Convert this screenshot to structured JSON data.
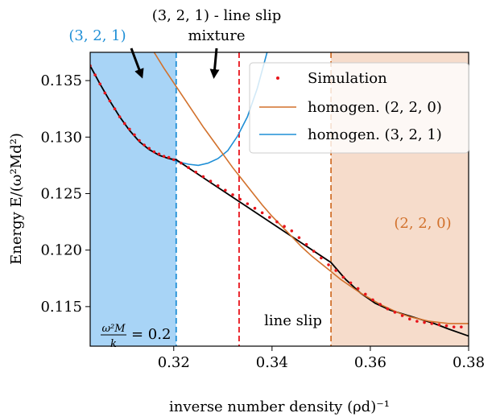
{
  "chart_data": {
    "type": "line",
    "xlabel": "inverse number density (ρd)⁻¹",
    "ylabel": "Energy E/(ω²Md²)",
    "xlim": [
      0.303,
      0.38
    ],
    "ylim": [
      0.1115,
      0.1375
    ],
    "x_ticks": [
      0.32,
      0.34,
      0.36,
      0.38
    ],
    "x_tick_labels": [
      "0.32",
      "0.34",
      "0.36",
      "0.38"
    ],
    "y_ticks": [
      0.115,
      0.12,
      0.125,
      0.13,
      0.135
    ],
    "y_tick_labels": [
      "0.115",
      "0.120",
      "0.125",
      "0.130",
      "0.135"
    ],
    "legend_position": "top-right",
    "colors": {
      "blue": "#1f8fd6",
      "orange": "#d2712c",
      "red": "#e8141b",
      "black": "#000000",
      "blue_region": "#a8d4f6",
      "orange_region": "#f6dccb"
    },
    "regions": [
      {
        "label": "(3, 2, 1)",
        "x_start": 0.303,
        "x_end": 0.3205,
        "color": "#a8d4f6"
      },
      {
        "label": "(2, 2, 0)",
        "x_start": 0.352,
        "x_end": 0.38,
        "color": "#f6dccb"
      }
    ],
    "vertical_lines": [
      {
        "x": 0.3205,
        "color": "#1f8fd6",
        "style": "dashed"
      },
      {
        "x": 0.3333,
        "color": "#e8141b",
        "style": "dashed"
      },
      {
        "x": 0.352,
        "color": "#d2712c",
        "style": "dashed"
      }
    ],
    "series": [
      {
        "name": "Simulation",
        "style": "dots",
        "color": "#e8141b",
        "x": [
          0.303,
          0.304,
          0.305,
          0.306,
          0.307,
          0.308,
          0.309,
          0.31,
          0.311,
          0.312,
          0.313,
          0.314,
          0.315,
          0.316,
          0.317,
          0.318,
          0.319,
          0.32,
          0.3215,
          0.323,
          0.3245,
          0.326,
          0.3275,
          0.329,
          0.3305,
          0.332,
          0.3335,
          0.335,
          0.3365,
          0.338,
          0.3395,
          0.341,
          0.3425,
          0.344,
          0.3455,
          0.347,
          0.3485,
          0.35,
          0.3515,
          0.353,
          0.3545,
          0.356,
          0.3575,
          0.359,
          0.3605,
          0.362,
          0.3635,
          0.365,
          0.3665,
          0.368,
          0.3695,
          0.371,
          0.3725,
          0.374,
          0.3755,
          0.377,
          0.3785
        ],
        "y": [
          0.1363,
          0.1355,
          0.1347,
          0.1339,
          0.1332,
          0.1325,
          0.1318,
          0.1312,
          0.1307,
          0.1302,
          0.1297,
          0.1293,
          0.129,
          0.1287,
          0.1285,
          0.1283,
          0.1282,
          0.128,
          0.1277,
          0.1273,
          0.1269,
          0.1265,
          0.1261,
          0.1257,
          0.1253,
          0.1249,
          0.1245,
          0.1241,
          0.1237,
          0.1233,
          0.1229,
          0.1225,
          0.1221,
          0.1217,
          0.1211,
          0.1205,
          0.1199,
          0.1193,
          0.1187,
          0.1182,
          0.1176,
          0.1171,
          0.1166,
          0.1161,
          0.1156,
          0.1152,
          0.1148,
          0.1145,
          0.1142,
          0.1139,
          0.1137,
          0.1136,
          0.1135,
          0.1134,
          0.1133,
          0.1132,
          0.1132
        ]
      },
      {
        "name": "homogen. (2, 2, 0)",
        "style": "line",
        "color": "#d2712c",
        "x": [
          0.316,
          0.318,
          0.32,
          0.322,
          0.324,
          0.326,
          0.328,
          0.33,
          0.332,
          0.334,
          0.336,
          0.338,
          0.34,
          0.342,
          0.344,
          0.346,
          0.348,
          0.35,
          0.352,
          0.354,
          0.356,
          0.358,
          0.36,
          0.362,
          0.364,
          0.366,
          0.368,
          0.37,
          0.372,
          0.374,
          0.376,
          0.378,
          0.38
        ],
        "y": [
          0.1375,
          0.1361,
          0.1348,
          0.1335,
          0.1322,
          0.1309,
          0.1297,
          0.1285,
          0.1273,
          0.1262,
          0.1251,
          0.124,
          0.123,
          0.1221,
          0.1212,
          0.1203,
          0.1195,
          0.1188,
          0.1181,
          0.1174,
          0.1168,
          0.1162,
          0.1157,
          0.1152,
          0.1148,
          0.1144,
          0.1141,
          0.1139,
          0.1137,
          0.1136,
          0.1135,
          0.1135,
          0.1135
        ]
      },
      {
        "name": "homogen. (3, 2, 1)",
        "style": "line",
        "color": "#1f8fd6",
        "x": [
          0.303,
          0.305,
          0.307,
          0.309,
          0.311,
          0.313,
          0.315,
          0.317,
          0.319,
          0.321,
          0.323,
          0.325,
          0.327,
          0.329,
          0.331,
          0.333,
          0.335,
          0.337,
          0.339
        ],
        "y": [
          0.1363,
          0.1347,
          0.1332,
          0.1318,
          0.1306,
          0.1296,
          0.1289,
          0.1284,
          0.1281,
          0.1278,
          0.1276,
          0.1275,
          0.1277,
          0.1281,
          0.1288,
          0.1301,
          0.1318,
          0.1343,
          0.1375
        ]
      },
      {
        "name": "",
        "style": "line",
        "color": "#000000",
        "x": [
          0.303,
          0.305,
          0.307,
          0.309,
          0.311,
          0.313,
          0.315,
          0.317,
          0.319,
          0.3205,
          0.352,
          0.355,
          0.358,
          0.361,
          0.364,
          0.367,
          0.37,
          0.373,
          0.376,
          0.38
        ],
        "y": [
          0.1363,
          0.1347,
          0.1332,
          0.1318,
          0.1306,
          0.1296,
          0.1289,
          0.1284,
          0.1281,
          0.128,
          0.1189,
          0.1174,
          0.1162,
          0.1153,
          0.1147,
          0.1143,
          0.1139,
          0.1135,
          0.113,
          0.1124
        ]
      }
    ],
    "legend": [
      "Simulation",
      "homogen. (2, 2, 0)",
      "homogen. (3, 2, 1)"
    ],
    "annotations": {
      "phase_321": "(3, 2, 1)",
      "mixture_line1": "(3, 2, 1) - line slip",
      "mixture_line2": "mixture",
      "phase_220": "(2, 2, 0)",
      "line_slip": "line slip",
      "parameter": "= 0.2"
    }
  }
}
